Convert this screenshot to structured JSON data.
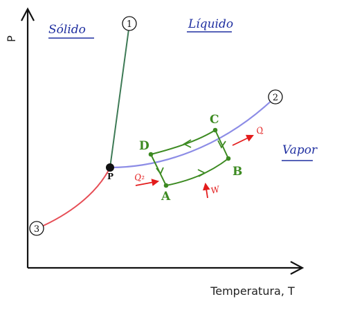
{
  "axes": {
    "y_label": "P",
    "x_label": "Temperatura, T"
  },
  "regions": {
    "solid": "Sólido",
    "liquid": "Líquido",
    "vapor": "Vapor"
  },
  "curve_markers": [
    "1",
    "2",
    "3"
  ],
  "triple_point": "P",
  "cycle_points": [
    "A",
    "B",
    "C",
    "D"
  ],
  "heat_labels": {
    "q_in": "Q₂",
    "q_out": "Q",
    "work": "W"
  },
  "colors": {
    "melting_curve": "#3d7a55",
    "vaporization_curve": "#8c8ce6",
    "sublimation_curve": "#e64d55",
    "cycle": "#3c8a21",
    "arrows": "#e31c1c",
    "handwriting": "#1f2fa0"
  }
}
